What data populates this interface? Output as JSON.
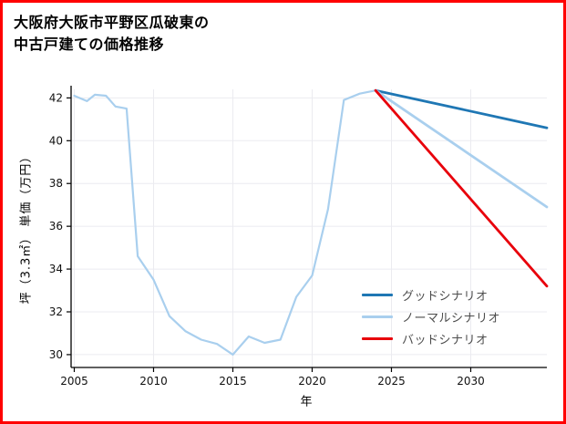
{
  "page": {
    "title_line1": "大阪府大阪市平野区瓜破東の",
    "title_line2": "中古戸建ての価格推移"
  },
  "chart_data": {
    "type": "line",
    "title": "大阪府大阪市平野区瓜破東の中古戸建ての価格推移",
    "xlabel": "年",
    "ylabel": "坪（3.3㎡） 単価（万円）",
    "xlim": [
      2004.8,
      2034.8
    ],
    "ylim": [
      29.4,
      42.4
    ],
    "xticks": [
      2005,
      2010,
      2015,
      2020,
      2025,
      2030
    ],
    "yticks": [
      30,
      32,
      34,
      36,
      38,
      40,
      42
    ],
    "grid": true,
    "legend_position": "lower right",
    "border_color": "#ff0000",
    "series": [
      {
        "id": "history",
        "color": "#a9cfee",
        "width": 2.2,
        "x": [
          2005,
          2005.8,
          2006.3,
          2007,
          2007.6,
          2008.3,
          2009,
          2010,
          2011,
          2012,
          2013,
          2014,
          2015,
          2016,
          2017,
          2018,
          2019,
          2020,
          2021,
          2022,
          2023,
          2024
        ],
        "y": [
          42.1,
          41.85,
          42.15,
          42.1,
          41.6,
          41.5,
          34.6,
          33.5,
          31.8,
          31.1,
          30.7,
          30.5,
          30.0,
          30.85,
          30.55,
          30.7,
          32.7,
          33.7,
          36.8,
          41.9,
          42.2,
          42.35
        ]
      },
      {
        "id": "good-scenario",
        "label": "グッドシナリオ",
        "color": "#1f77b4",
        "width": 2.8,
        "x": [
          2024,
          2034.8
        ],
        "y": [
          42.35,
          40.6
        ]
      },
      {
        "id": "normal-scenario",
        "label": "ノーマルシナリオ",
        "color": "#a9cfee",
        "width": 2.8,
        "x": [
          2024,
          2034.8
        ],
        "y": [
          42.35,
          36.9
        ]
      },
      {
        "id": "bad-scenario",
        "label": "バッドシナリオ",
        "color": "#e8000b",
        "width": 2.8,
        "x": [
          2024,
          2034.8
        ],
        "y": [
          42.35,
          33.2
        ]
      }
    ],
    "legend": [
      {
        "label": "グッドシナリオ",
        "color": "#1f77b4"
      },
      {
        "label": "ノーマルシナリオ",
        "color": "#a9cfee"
      },
      {
        "label": "バッドシナリオ",
        "color": "#e8000b"
      }
    ]
  }
}
